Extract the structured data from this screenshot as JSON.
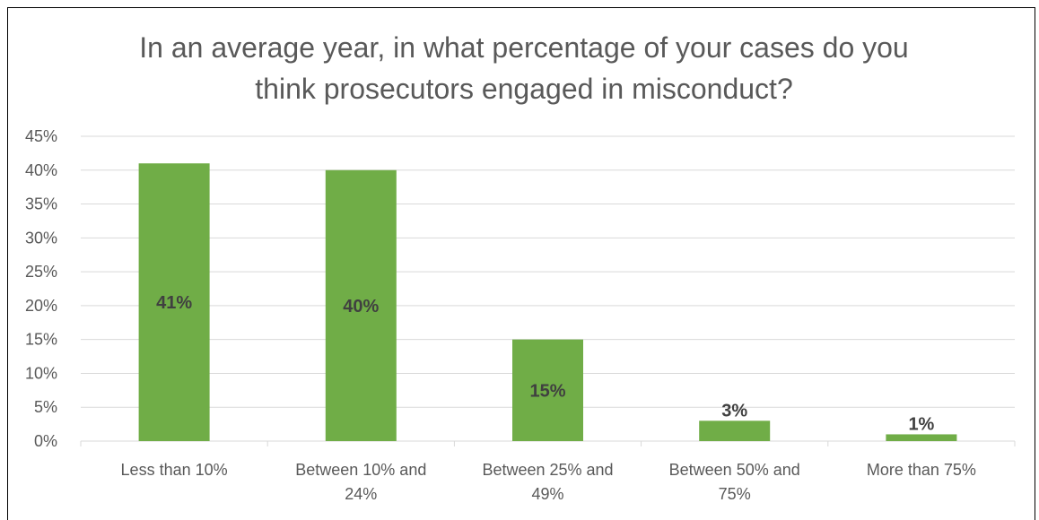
{
  "chart_data": {
    "type": "bar",
    "title_lines": [
      "In an average year, in what percentage of your cases do you",
      "think prosecutors engaged in misconduct?"
    ],
    "categories": [
      [
        "Less than 10%"
      ],
      [
        "Between 10% and",
        "24%"
      ],
      [
        "Between 25% and",
        "49%"
      ],
      [
        "Between 50% and",
        "75%"
      ],
      [
        "More than 75%"
      ]
    ],
    "values": [
      41,
      40,
      15,
      3,
      1
    ],
    "data_labels": [
      "41%",
      "40%",
      "15%",
      "3%",
      "1%"
    ],
    "ylim": [
      0,
      45
    ],
    "yticks": [
      0,
      5,
      10,
      15,
      20,
      25,
      30,
      35,
      40,
      45
    ],
    "ytick_labels": [
      "0%",
      "5%",
      "10%",
      "15%",
      "20%",
      "25%",
      "30%",
      "35%",
      "40%",
      "45%"
    ],
    "xlabel": "",
    "ylabel": "",
    "grid": true,
    "legend": "none",
    "bar_color": "#70ad47"
  }
}
